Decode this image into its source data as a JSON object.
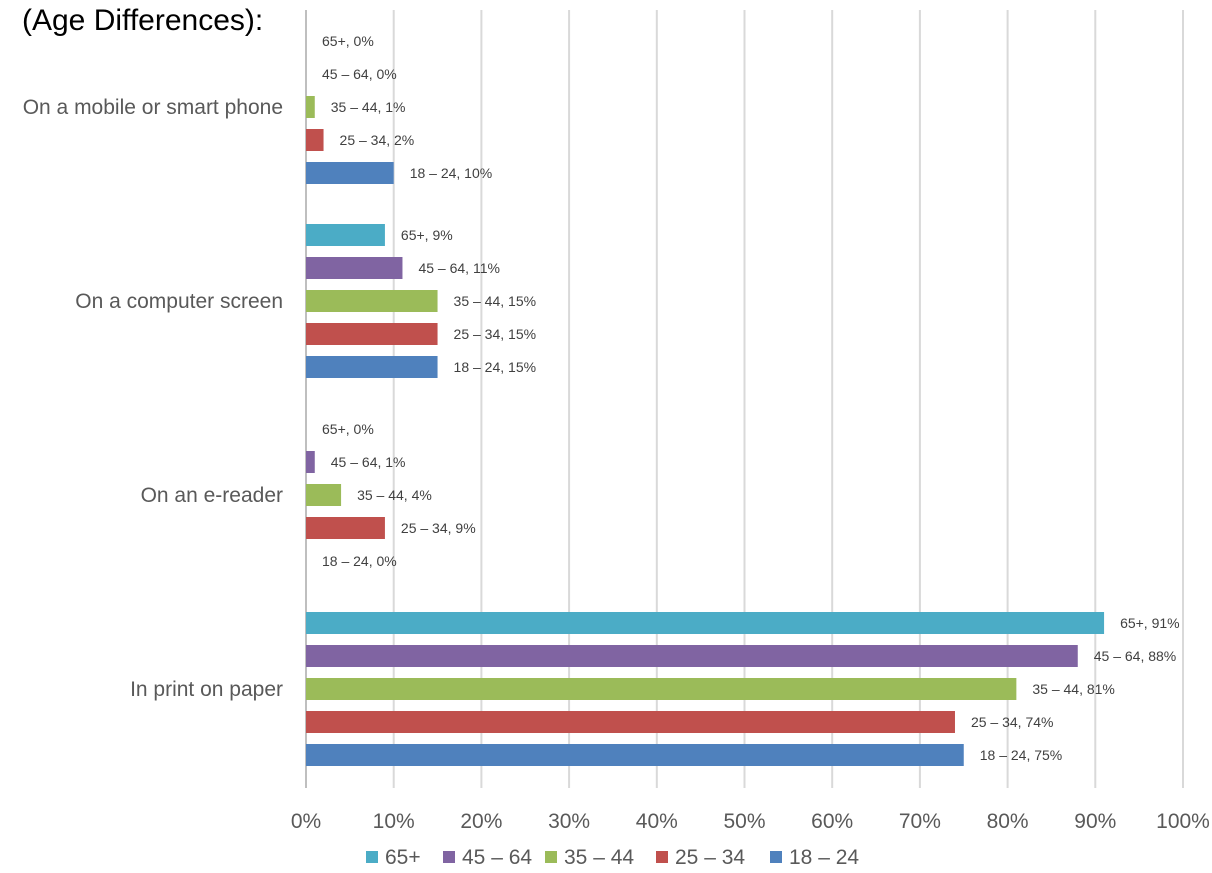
{
  "chart_data": {
    "type": "bar",
    "orientation": "horizontal",
    "title": "(Age Differences):",
    "categories": [
      "On a mobile or smart phone",
      "On a computer screen",
      "On an e-reader",
      "In print on paper"
    ],
    "series": [
      {
        "name": "18 – 24",
        "color": "#4f81bd",
        "values": [
          10,
          15,
          0,
          75
        ],
        "labels": [
          "18 – 24, 10%",
          "18 – 24, 15%",
          "18 – 24, 0%",
          "18 – 24, 75%"
        ]
      },
      {
        "name": "25 – 34",
        "color": "#c0504d",
        "values": [
          2,
          15,
          9,
          74
        ],
        "labels": [
          "25 – 34, 2%",
          "25 – 34, 15%",
          "25 – 34, 9%",
          "25 – 34, 74%"
        ]
      },
      {
        "name": "35 – 44",
        "color": "#9bbb59",
        "values": [
          1,
          15,
          4,
          81
        ],
        "labels": [
          "35 – 44, 1%",
          "35 – 44, 15%",
          "35 – 44, 4%",
          "35 – 44, 81%"
        ]
      },
      {
        "name": "45 – 64",
        "color": "#8064a2",
        "values": [
          0,
          11,
          1,
          88
        ],
        "labels": [
          "45 – 64, 0%",
          "45 – 64, 11%",
          "45 – 64, 1%",
          "45 – 64, 88%"
        ]
      },
      {
        "name": "65+",
        "color": "#4bacc6",
        "values": [
          0,
          9,
          0,
          91
        ],
        "labels": [
          "65+, 0%",
          "65+, 9%",
          "65+, 0%",
          "65+, 91%"
        ]
      }
    ],
    "xlim": [
      0,
      100
    ],
    "x_ticks": [
      0,
      10,
      20,
      30,
      40,
      50,
      60,
      70,
      80,
      90,
      100
    ],
    "x_tick_labels": [
      "0%",
      "10%",
      "20%",
      "30%",
      "40%",
      "50%",
      "60%",
      "70%",
      "80%",
      "90%",
      "100%"
    ],
    "grid": "vertical",
    "legend_position": "bottom",
    "legend_order": [
      "65+",
      "45 – 64",
      "35 – 44",
      "25 – 34",
      "18 – 24"
    ]
  }
}
